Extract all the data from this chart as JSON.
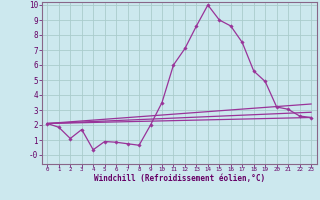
{
  "title": "",
  "xlabel": "Windchill (Refroidissement éolien,°C)",
  "ylabel": "",
  "background_color": "#cce8ee",
  "grid_color": "#aacccc",
  "line_color": "#993399",
  "xlim": [
    -0.5,
    23.5
  ],
  "ylim": [
    -0.6,
    10.2
  ],
  "yticks": [
    0,
    1,
    2,
    3,
    4,
    5,
    6,
    7,
    8,
    9,
    10
  ],
  "ytick_labels": [
    "-0",
    "1",
    "2",
    "3",
    "4",
    "5",
    "6",
    "7",
    "8",
    "9",
    "10"
  ],
  "xticks": [
    0,
    1,
    2,
    3,
    4,
    5,
    6,
    7,
    8,
    9,
    10,
    11,
    12,
    13,
    14,
    15,
    16,
    17,
    18,
    19,
    20,
    21,
    22,
    23
  ],
  "main_x": [
    0,
    1,
    2,
    3,
    4,
    5,
    6,
    7,
    8,
    9,
    10,
    11,
    12,
    13,
    14,
    15,
    16,
    17,
    18,
    19,
    20,
    21,
    22,
    23
  ],
  "main_y": [
    2.1,
    1.85,
    1.1,
    1.7,
    0.35,
    0.9,
    0.85,
    0.75,
    0.65,
    2.0,
    3.5,
    6.0,
    7.1,
    8.6,
    10.0,
    9.0,
    8.6,
    7.5,
    5.6,
    4.9,
    3.2,
    3.05,
    2.6,
    2.5
  ],
  "line1_x": [
    0,
    23
  ],
  "line1_y": [
    2.1,
    3.4
  ],
  "line2_x": [
    0,
    23
  ],
  "line2_y": [
    2.1,
    2.85
  ],
  "line3_x": [
    0,
    23
  ],
  "line3_y": [
    2.1,
    2.5
  ]
}
